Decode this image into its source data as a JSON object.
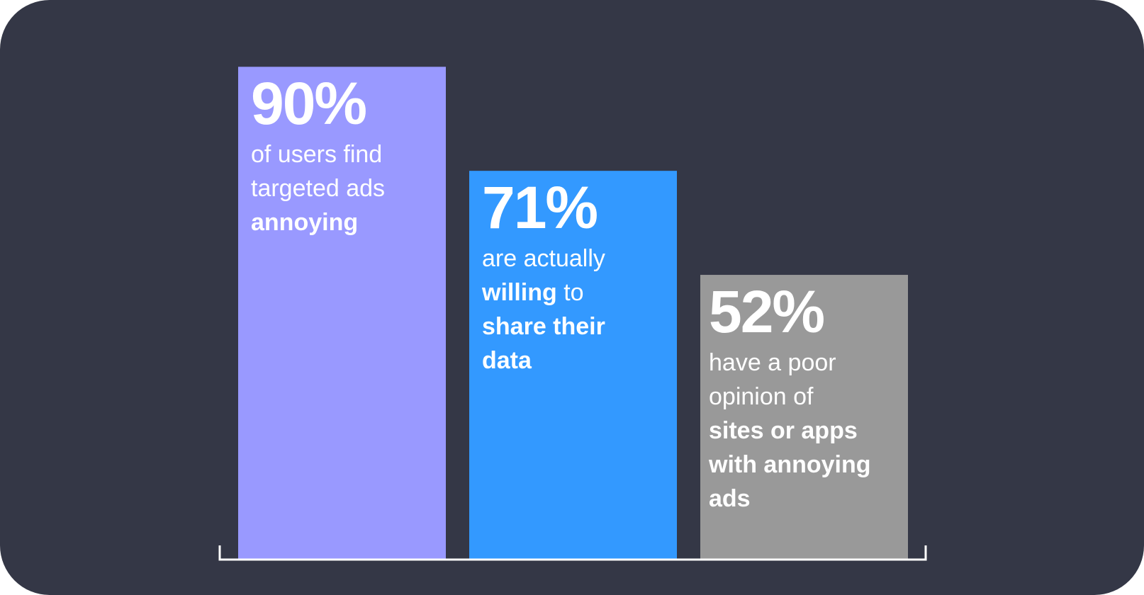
{
  "colors": {
    "background": "#343746",
    "axis": "#ffffff",
    "text": "#ffffff"
  },
  "chart_data": {
    "type": "bar",
    "categories": [
      "90%",
      "71%",
      "52%"
    ],
    "values": [
      90,
      71,
      52
    ],
    "ylim": [
      0,
      100
    ],
    "grid": false,
    "legend": "none",
    "bars": [
      {
        "value_label": "90%",
        "color": "#9999ff",
        "caption": [
          {
            "text": "of users find",
            "bold": false
          },
          {
            "text": "targeted ads",
            "bold": false
          },
          {
            "text": "annoying",
            "bold": true
          }
        ]
      },
      {
        "value_label": "71%",
        "color": "#3399ff",
        "caption": [
          {
            "text": "are actually",
            "bold": false
          },
          {
            "text": "willing",
            "bold": true
          },
          {
            "text": " to",
            "bold": false
          },
          {
            "text": "share their",
            "bold": true
          },
          {
            "text": "data",
            "bold": true
          }
        ]
      },
      {
        "value_label": "52%",
        "color": "#999999",
        "caption": [
          {
            "text": "have a poor",
            "bold": false
          },
          {
            "text": "opinion of",
            "bold": false
          },
          {
            "text": "sites or apps",
            "bold": true
          },
          {
            "text": "with annoying",
            "bold": true
          },
          {
            "text": "ads",
            "bold": true
          }
        ]
      }
    ]
  }
}
